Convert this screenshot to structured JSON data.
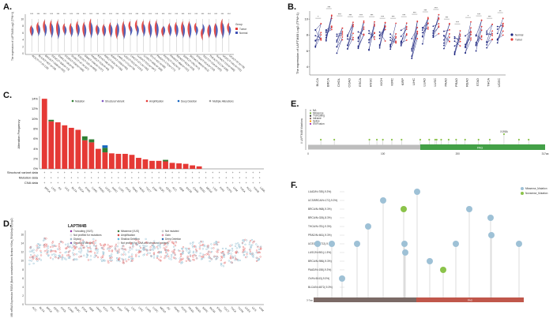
{
  "figure": {
    "panels": [
      "A.",
      "B.",
      "C.",
      "D.",
      "E.",
      "F."
    ],
    "legend_group": {
      "title": "Group",
      "items": [
        "Tumor",
        "Normal"
      ]
    },
    "colors": {
      "tumor": "#e53935",
      "normal": "#3f51b5",
      "dark_blue": "#1a237e",
      "amplification": "#e53935",
      "mutation": "#2e7d32",
      "deep_deletion": "#1565c0",
      "lollipop_blue": "#9ec1d6",
      "lollipop_green": "#8bc34a",
      "bar_gray": "#bdbdbd",
      "bar_green": "#43a047",
      "bar_brown": "#7b6a66",
      "bar_red": "#c0574b"
    }
  },
  "panel_a": {
    "ylabel": "The expression of LAPTM4B\nLog2 (TPM+1)",
    "yticks": [
      "10",
      "8",
      "6",
      "4",
      "2",
      "0"
    ],
    "categories": [
      "ACC(T=77,N=128)",
      "BLCA(T=407,N=28)",
      "BRCA(T=1099,N=292)",
      "CESC(T=306,N=13)",
      "CHOL(T=36,N=9)",
      "COAD(T=290,N=349)",
      "DLBC(T=47,N=337)",
      "ESCA(T=182,N=666)",
      "GBM(T=166,N=1157)",
      "HNSC(T=520,N=44)",
      "KICH(T=66,N=53)",
      "KIRC(T=531,N=100)",
      "KIRP(T=289,N=60)",
      "LAML(T=173,N=70)",
      "LGG(T=523,N=1152)",
      "LIHC(T=371,N=160)",
      "LUAD(T=515,N=347)",
      "LUSC(T=498,N=338)",
      "OV(T=427,N=88)",
      "PAAD(T=179,N=171)",
      "PCPG(T=182,N=3)",
      "PRAD(T=496,N=152)",
      "READ(T=93,N=318)",
      "SARC(T=262,N=2)",
      "SKCM(T=469,N=813)",
      "STAD(T=414,N=210)",
      "TGCT(T=154,N=165)",
      "THCA(T=512,N=338)",
      "THYM(T=119,N=446)",
      "UCEC(T=181,N=101)",
      "UCS(T=57,N=78)"
    ],
    "significance": [
      "***",
      "***",
      "***",
      "***",
      "***",
      "***",
      "***",
      "***",
      "***",
      "***",
      "***",
      "***",
      "***",
      "***",
      "***",
      "***",
      "***",
      "***",
      "***",
      "***",
      "***",
      "***",
      "***",
      "***",
      "***",
      "***",
      "***",
      "***",
      "***",
      "***",
      "***"
    ],
    "tumor_median": [
      7.2,
      7.9,
      8.3,
      8.0,
      7.8,
      7.7,
      7.6,
      8.0,
      7.5,
      8.2,
      7.4,
      7.3,
      7.6,
      6.8,
      7.5,
      8.4,
      8.5,
      8.1,
      7.9,
      7.8,
      6.8,
      7.6,
      7.7,
      7.7,
      7.5,
      7.9,
      6.1,
      6.9,
      7.2,
      8.1,
      7.9
    ],
    "normal_median": [
      6.8,
      7.1,
      7.2,
      7.0,
      6.9,
      7.0,
      6.8,
      7.1,
      6.9,
      7.1,
      7.0,
      6.9,
      6.9,
      7.2,
      6.8,
      7.0,
      7.0,
      7.1,
      7.0,
      7.1,
      7.0,
      7.0,
      7.0,
      6.9,
      7.0,
      7.0,
      7.3,
      7.0,
      6.9,
      7.0,
      7.0
    ]
  },
  "panel_b": {
    "ylabel": "The expression of LAPTM4B\nLog2 (TPM+1)",
    "yticks": [
      "10",
      "8",
      "6",
      "4"
    ],
    "ylim": [
      3,
      11
    ],
    "legend": [
      "Normal",
      "Tumor"
    ],
    "categories": [
      "BLCA",
      "BRCA",
      "CHOL",
      "COAD",
      "ESCA",
      "HNSC",
      "KICH",
      "KIRC",
      "KIRP",
      "LIHC",
      "LUAD",
      "LUSC",
      "PAAD",
      "PRAD",
      "READ",
      "STAD",
      "THCA",
      "UCEC"
    ],
    "significance": [
      "*",
      "***",
      "***",
      "***",
      "***",
      "***",
      "***",
      "***",
      "***",
      "***",
      "***",
      "***",
      "***",
      "***",
      "*",
      "***",
      "***",
      "**"
    ],
    "normal_mean": [
      7.6,
      8.5,
      6.8,
      7.0,
      7.2,
      7.3,
      7.6,
      7.5,
      7.4,
      6.3,
      8.0,
      8.0,
      7.6,
      6.5,
      7.0,
      7.1,
      7.6,
      8.1
    ],
    "tumor_mean": [
      8.3,
      9.5,
      8.6,
      8.5,
      8.5,
      8.5,
      8.3,
      8.3,
      8.5,
      8.8,
      9.1,
      9.4,
      8.2,
      7.6,
      8.4,
      8.6,
      8.3,
      9.0
    ]
  },
  "panel_c": {
    "ylabel": "Alteration Frequency",
    "yticks": [
      "14%",
      "12%",
      "10%",
      "8%",
      "6%",
      "4%",
      "2%",
      "0%"
    ],
    "legend": [
      "Mutation",
      "Structural Variant",
      "Amplification",
      "Deep Deletion",
      "Multiple Alterations"
    ],
    "row_labels": [
      "Structural variant data",
      "Mutation data",
      "CNA data"
    ],
    "categories": [
      "BRCA",
      "LIHC",
      "OV",
      "UCS",
      "BLCA",
      "ESCA",
      "STAD",
      "LUAD",
      "PRAD",
      "UCEC",
      "SARC",
      "LUSC",
      "CHOL",
      "PAAD",
      "HNSC",
      "TGCT",
      "KIRP",
      "DLBC",
      "CESC",
      "ACC",
      "GBM",
      "SKCM",
      "COAD",
      "READ",
      "MESO",
      "LGG",
      "KIRC",
      "PCPG",
      "UVM",
      "THCA",
      "KICH",
      "THYM",
      "LAML"
    ],
    "amplification": [
      14.0,
      9.5,
      9.3,
      8.7,
      8.2,
      7.8,
      5.7,
      5.3,
      4.0,
      3.3,
      3.1,
      3.0,
      3.0,
      2.8,
      2.2,
      1.9,
      1.6,
      1.6,
      1.5,
      1.2,
      1.1,
      1.0,
      0.7,
      0.5,
      0,
      0,
      0,
      0,
      0,
      0,
      0,
      0,
      0
    ],
    "mutation": [
      0,
      0.3,
      0,
      0,
      0,
      0,
      0.8,
      0.6,
      0,
      0.9,
      0,
      0,
      0,
      0,
      0,
      0,
      0,
      0,
      0.3,
      0,
      0,
      0,
      0,
      0,
      0,
      0,
      0,
      0,
      0,
      0,
      0,
      0,
      0
    ],
    "deep_deletion": [
      0,
      0,
      0,
      0,
      0,
      0,
      0,
      0,
      0,
      0.5,
      0,
      0,
      0,
      0,
      0,
      0,
      0,
      0,
      0,
      0,
      0,
      0,
      0,
      0,
      0,
      0,
      0,
      0,
      0,
      0,
      0,
      0,
      0
    ]
  },
  "panel_d": {
    "title": "LAPTM4B",
    "ylabel": "MB mRNA Expression RSEM (Batch normalized from Illumina HiSeq_RNASeqV2) (log2)",
    "yticks": [
      "16",
      "14",
      "12",
      "10",
      "8",
      "6",
      "4",
      "2",
      "0"
    ],
    "legend": [
      "Truncating (VUS)",
      "Missense (VUS)",
      "Not mutated",
      "Not profiled for mutations",
      "Amplification",
      "Gain",
      "Diploid",
      "Shallow Deletion",
      "Deep Deletion",
      "Structural Variant",
      "Not profiled for CNA and structural variants"
    ],
    "categories": [
      "ACC",
      "BLCA",
      "BRCA",
      "CESC",
      "CHOL",
      "COAD",
      "DLBC",
      "ESCA",
      "GBM",
      "HNSC",
      "KICH",
      "KIRC",
      "KIRP",
      "LAML",
      "LGG",
      "LIHC",
      "LUAD",
      "LUSC",
      "MESO",
      "OV",
      "PAAD",
      "PCPG",
      "PRAD",
      "READ",
      "SARC",
      "SKCM",
      "STAD",
      "TGCT",
      "THCA",
      "THYM",
      "UCEC",
      "UCS",
      "UVM"
    ],
    "median": [
      11.2,
      12.0,
      13.1,
      12.5,
      12.4,
      12.1,
      12.0,
      12.8,
      12.3,
      12.9,
      11.9,
      11.7,
      12.0,
      11.6,
      12.0,
      13.1,
      13.0,
      12.8,
      12.0,
      12.6,
      12.4,
      11.1,
      12.0,
      12.2,
      12.4,
      12.0,
      12.5,
      10.9,
      11.6,
      12.0,
      12.9,
      13.0,
      11.9
    ]
  },
  "panel_e": {
    "ylabel": "# LAPTM4B Mutations",
    "legend": [
      "NA",
      "Missense",
      "Truncating",
      "Inframe",
      "Splice",
      "SV/Fusion"
    ],
    "domain_label": "PAG",
    "xticks": [
      "0",
      "100",
      "200",
      "317aa"
    ],
    "hotspot_label": "X195A",
    "mutation_positions": [
      17,
      35,
      82,
      92,
      100,
      112,
      125,
      150,
      162,
      170,
      172,
      178,
      188,
      198,
      210,
      228,
      243,
      262,
      282,
      295
    ],
    "domain_range": [
      150,
      317
    ],
    "length": 317
  },
  "panel_f": {
    "legend": [
      "Missense_Mutation",
      "Nonsense_Mutation"
    ],
    "sample_labels": [
      "LUAD/N=785(-9.3%)",
      "UCS/BRCA/N=172(-9.3%)",
      "BRCA/N=968(-9.3%)",
      "BRCA/N=326(-8.3%)",
      "THCA/N=781(-9.3%)",
      "PRAD/N=661(-9.3%)",
      "UCEC/N=1712(-9.3%)",
      "LUSC/N=981(-1.5%)",
      "BRCA/N=986(-9.3%)",
      "PAAD/N=158(-9.3%)",
      "OV/N=5043(-9.3%)",
      "BLCA/N=4872(-9.3%)"
    ],
    "track_labels": [
      "3-7aa",
      "PAG"
    ]
  }
}
